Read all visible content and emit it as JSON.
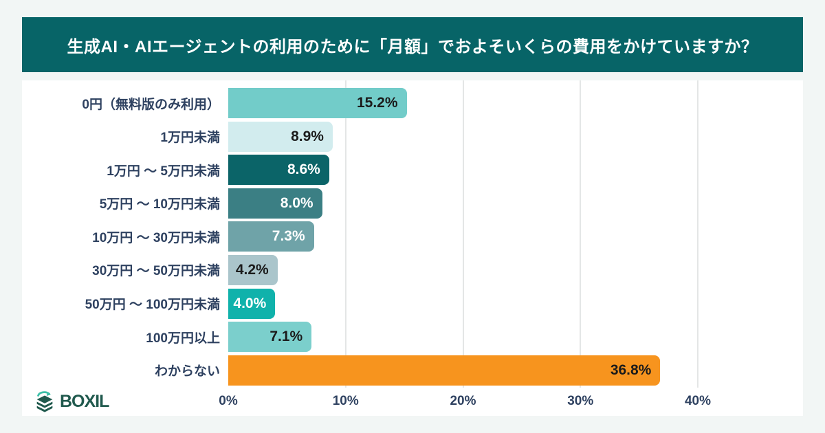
{
  "header": {
    "title": "生成AI・AIエージェントの利用のために「月額」でおよそいくらの費用をかけていますか？",
    "bg_color": "#076467",
    "text_color": "#ffffff"
  },
  "chart_data": {
    "type": "bar",
    "orientation": "horizontal",
    "title": "生成AI・AIエージェントの利用のために「月額」でおよそいくらの費用をかけていますか？",
    "categories": [
      "0円（無料版のみ利用）",
      "1万円未満",
      "1万円 ～ 5万円未満",
      "5万円 ～ 10万円未満",
      "10万円 ～ 30万円未満",
      "30万円 ～ 50万円未満",
      "50万円 ～ 100万円未満",
      "100万円以上",
      "わからない"
    ],
    "values": [
      15.2,
      8.9,
      8.6,
      8.0,
      7.3,
      4.2,
      4.0,
      7.1,
      36.8
    ],
    "value_labels": [
      "15.2%",
      "8.9%",
      "8.6%",
      "8.0%",
      "7.3%",
      "4.2%",
      "4.0%",
      "7.1%",
      "36.8%"
    ],
    "bar_colors": [
      "#72ccc9",
      "#d2ecee",
      "#0b6468",
      "#3b7f84",
      "#6fa3a8",
      "#aac5cb",
      "#10b2ab",
      "#7bcfcc",
      "#f7941e"
    ],
    "value_label_colors": [
      "#1b1b1b",
      "#1b1b1b",
      "#ffffff",
      "#ffffff",
      "#ffffff",
      "#1b1b1b",
      "#ffffff",
      "#1b1b1b",
      "#1b1b1b"
    ],
    "xlabel": "",
    "ylabel": "",
    "xlim": [
      0,
      40
    ],
    "x_ticks": [
      0,
      10,
      20,
      30,
      40
    ],
    "x_tick_labels": [
      "0%",
      "10%",
      "20%",
      "30%",
      "40%"
    ],
    "grid": true,
    "gridline_color": "#e4e6e6",
    "legend": "none",
    "label_color": "#2e4160"
  },
  "footer": {
    "logo_text": "BOXIL",
    "logo_color": "#20594d",
    "logo_accent": "#3dbfa8"
  }
}
